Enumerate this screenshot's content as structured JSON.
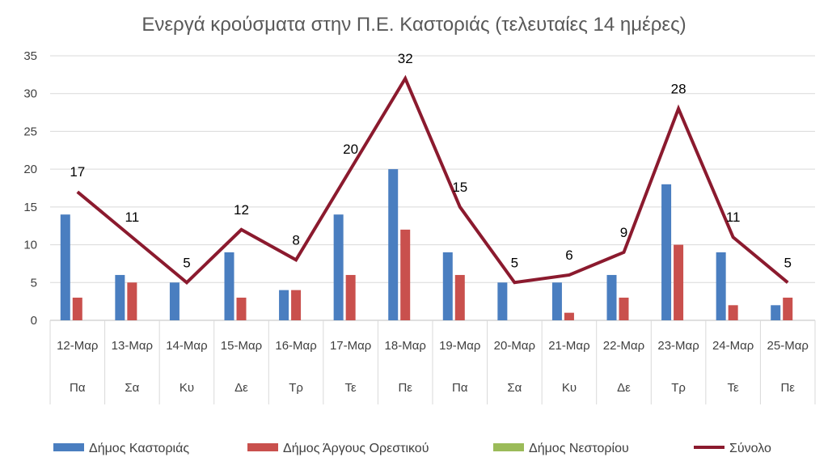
{
  "chart_data": {
    "type": "bar",
    "title": "Ενεργά κρούσματα στην Π.Ε. Καστοριάς (τελευταίες 14 ημέρες)",
    "categories": [
      "12-Μαρ",
      "13-Μαρ",
      "14-Μαρ",
      "15-Μαρ",
      "16-Μαρ",
      "17-Μαρ",
      "18-Μαρ",
      "19-Μαρ",
      "20-Μαρ",
      "21-Μαρ",
      "22-Μαρ",
      "23-Μαρ",
      "24-Μαρ",
      "25-Μαρ"
    ],
    "day_labels": [
      "Πα",
      "Σα",
      "Κυ",
      "Δε",
      "Τρ",
      "Τε",
      "Πε",
      "Πα",
      "Σα",
      "Κυ",
      "Δε",
      "Τρ",
      "Τε",
      "Πε"
    ],
    "ylim": [
      0,
      35
    ],
    "yticks": [
      0,
      5,
      10,
      15,
      20,
      25,
      30,
      35
    ],
    "grid": true,
    "legend_position": "bottom",
    "series": [
      {
        "name": "Δήμος Καστοριάς",
        "type": "bar",
        "color": "#4a7ec0",
        "values": [
          14,
          6,
          5,
          9,
          4,
          14,
          20,
          9,
          5,
          5,
          6,
          18,
          9,
          2
        ]
      },
      {
        "name": "Δήμος Άργους Ορεστικού",
        "type": "bar",
        "color": "#c9504d",
        "values": [
          3,
          5,
          0,
          3,
          4,
          6,
          12,
          6,
          0,
          1,
          3,
          10,
          2,
          3
        ]
      },
      {
        "name": "Δήμος Νεστορίου",
        "type": "bar",
        "color": "#9bbb59",
        "values": [
          0,
          0,
          0,
          0,
          0,
          0,
          0,
          0,
          0,
          0,
          0,
          0,
          0,
          0
        ]
      },
      {
        "name": "Σύνολο",
        "type": "line",
        "color": "#8b1a2e",
        "values": [
          17,
          11,
          5,
          12,
          8,
          20,
          32,
          15,
          5,
          6,
          9,
          28,
          11,
          5
        ]
      }
    ]
  }
}
